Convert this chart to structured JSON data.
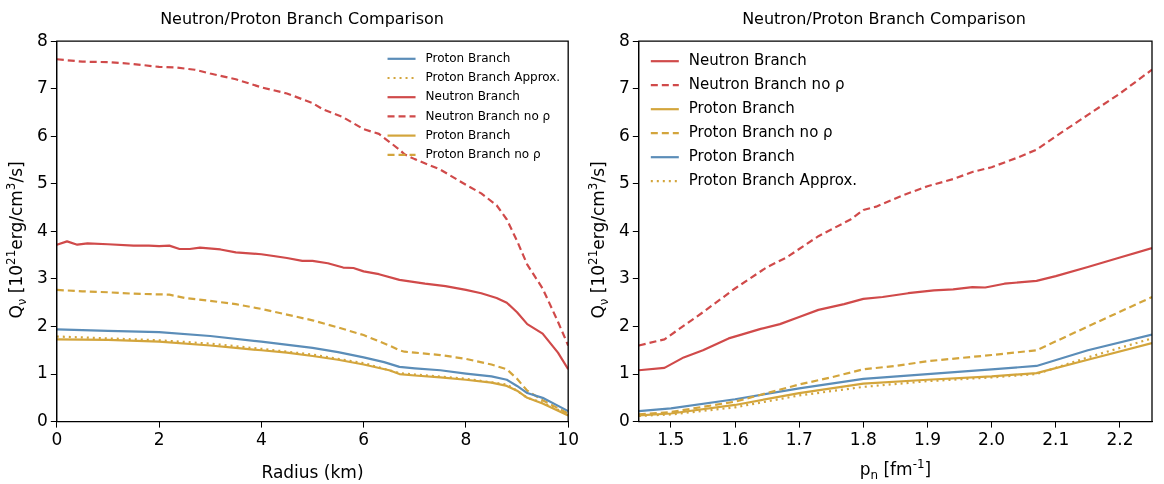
{
  "chart_data": [
    {
      "type": "line",
      "title": "Neutron/Proton Branch Comparison",
      "xlabel": "Radius (km)",
      "ylabel": "Q$_{ν}$ [10$^{21}$erg/cm$^{3}$/s]",
      "xlim": [
        0,
        10
      ],
      "xticks": [
        0,
        2,
        4,
        6,
        8,
        10
      ],
      "ylim": [
        0,
        8
      ],
      "yticks": [
        0,
        1,
        2,
        3,
        4,
        5,
        6,
        7,
        8
      ],
      "grid": false,
      "legend": "top right",
      "marker": "none",
      "series": [
        {
          "name": "Proton Branch",
          "color": "#5b8db8",
          "line_style": "solid",
          "x": [
            0,
            1,
            2,
            3,
            4,
            5,
            5.5,
            6,
            6.4,
            6.7,
            7,
            7.5,
            8,
            8.5,
            8.8,
            9,
            9.2,
            9.5,
            10
          ],
          "values": [
            1.94,
            1.91,
            1.88,
            1.8,
            1.68,
            1.55,
            1.46,
            1.35,
            1.25,
            1.15,
            1.12,
            1.08,
            1.01,
            0.95,
            0.88,
            0.75,
            0.6,
            0.5,
            0.22
          ]
        },
        {
          "name": "Proton Branch Approx.",
          "color": "#d3a53c",
          "line_style": "dotted",
          "x": [
            0,
            1,
            2,
            3,
            4,
            5,
            6,
            6.7,
            7,
            8,
            8.8,
            9,
            9.2,
            9.5,
            10
          ],
          "values": [
            1.79,
            1.75,
            1.71,
            1.64,
            1.53,
            1.41,
            1.23,
            1.02,
            0.99,
            0.9,
            0.78,
            0.65,
            0.5,
            0.4,
            0.15
          ]
        },
        {
          "name": "Neutron Branch",
          "color": "#d04a4a",
          "line_style": "solid",
          "x": [
            0,
            0.2,
            0.4,
            0.6,
            1,
            1.5,
            1.8,
            2,
            2.2,
            2.4,
            2.6,
            2.8,
            3.2,
            3.5,
            4,
            4.5,
            4.8,
            5,
            5.3,
            5.6,
            5.8,
            6,
            6.3,
            6.7,
            6.9,
            7.2,
            7.6,
            8,
            8.3,
            8.6,
            8.8,
            9,
            9.2,
            9.5,
            9.8,
            10
          ],
          "values": [
            3.72,
            3.79,
            3.72,
            3.75,
            3.73,
            3.7,
            3.7,
            3.69,
            3.7,
            3.63,
            3.63,
            3.66,
            3.62,
            3.56,
            3.52,
            3.44,
            3.38,
            3.38,
            3.33,
            3.24,
            3.23,
            3.16,
            3.1,
            2.98,
            2.95,
            2.9,
            2.85,
            2.77,
            2.7,
            2.6,
            2.5,
            2.3,
            2.05,
            1.85,
            1.45,
            1.1
          ]
        },
        {
          "name": "Neutron Branch no ρ",
          "color": "#d04a4a",
          "line_style": "dashed",
          "x": [
            0,
            0.5,
            1,
            1.5,
            2,
            2.3,
            2.7,
            3,
            3.5,
            4,
            4.5,
            5,
            5.2,
            5.6,
            6,
            6.3,
            6.7,
            6.8,
            7,
            7.5,
            8,
            8.3,
            8.6,
            8.8,
            9,
            9.2,
            9.5,
            9.8,
            10
          ],
          "values": [
            7.62,
            7.57,
            7.56,
            7.52,
            7.46,
            7.45,
            7.4,
            7.32,
            7.2,
            7.03,
            6.9,
            6.7,
            6.57,
            6.4,
            6.15,
            6.05,
            5.72,
            5.62,
            5.52,
            5.3,
            4.98,
            4.8,
            4.55,
            4.25,
            3.8,
            3.3,
            2.8,
            2.1,
            1.6
          ]
        },
        {
          "name": "Proton Branch",
          "color": "#d3a53c",
          "line_style": "solid",
          "x": [
            0,
            1,
            2,
            3,
            3.5,
            4,
            4.5,
            5,
            5.5,
            6,
            6.5,
            6.7,
            7,
            7.5,
            8,
            8.5,
            8.8,
            9,
            9.2,
            9.5,
            10
          ],
          "values": [
            1.73,
            1.72,
            1.68,
            1.6,
            1.55,
            1.5,
            1.45,
            1.38,
            1.3,
            1.2,
            1.08,
            1.0,
            0.97,
            0.93,
            0.88,
            0.82,
            0.75,
            0.65,
            0.5,
            0.38,
            0.13
          ]
        },
        {
          "name": "Proton Branch no ρ",
          "color": "#d3a53c",
          "line_style": "dashed",
          "x": [
            0,
            0.5,
            1,
            1.5,
            2.2,
            2.5,
            3,
            3.5,
            4,
            4.5,
            5,
            5.5,
            6,
            6.5,
            6.7,
            6.8,
            7,
            7.5,
            8,
            8.5,
            8.8,
            9,
            9.2,
            9.5,
            10
          ],
          "values": [
            2.77,
            2.74,
            2.72,
            2.69,
            2.67,
            2.6,
            2.54,
            2.47,
            2.37,
            2.25,
            2.13,
            1.98,
            1.82,
            1.6,
            1.5,
            1.47,
            1.45,
            1.4,
            1.32,
            1.2,
            1.1,
            0.9,
            0.65,
            0.45,
            0.17
          ]
        }
      ]
    },
    {
      "type": "line",
      "title": "Neutron/Proton Branch Comparison",
      "xlabel": "p$_{n}$ [fm$^{-1}$]",
      "ylabel": "Q$_{ν}$ [10$^{21}$erg/cm$^{3}$/s]",
      "xlim": [
        1.45,
        2.25
      ],
      "xticks": [
        1.5,
        1.6,
        1.7,
        1.8,
        1.9,
        {
          "value": 2,
          "label": "2.0"
        },
        2.1,
        2.2
      ],
      "ylim": [
        0,
        8
      ],
      "yticks": [
        0,
        1,
        2,
        3,
        4,
        5,
        6,
        7,
        8
      ],
      "grid": false,
      "legend": "top left",
      "marker": "none",
      "series": [
        {
          "name": "Neutron Branch",
          "color": "#d04a4a",
          "line_style": "solid",
          "x": [
            1.45,
            1.49,
            1.52,
            1.55,
            1.59,
            1.61,
            1.64,
            1.67,
            1.7,
            1.73,
            1.77,
            1.8,
            1.83,
            1.87,
            1.91,
            1.94,
            1.97,
            1.99,
            2.02,
            2.07,
            2.1,
            2.15,
            2.2,
            2.25
          ],
          "values": [
            1.08,
            1.13,
            1.35,
            1.5,
            1.75,
            1.83,
            1.95,
            2.05,
            2.2,
            2.35,
            2.47,
            2.58,
            2.62,
            2.7,
            2.76,
            2.78,
            2.83,
            2.82,
            2.9,
            2.96,
            3.06,
            3.25,
            3.45,
            3.65
          ]
        },
        {
          "name": "Neutron Branch no ρ",
          "color": "#d04a4a",
          "line_style": "dashed",
          "x": [
            1.45,
            1.49,
            1.55,
            1.6,
            1.65,
            1.68,
            1.73,
            1.78,
            1.8,
            1.82,
            1.86,
            1.9,
            1.94,
            1.97,
            2.0,
            2.04,
            2.07,
            2.1,
            2.15,
            2.2,
            2.25
          ],
          "values": [
            1.6,
            1.73,
            2.3,
            2.8,
            3.25,
            3.45,
            3.9,
            4.25,
            4.45,
            4.52,
            4.75,
            4.95,
            5.1,
            5.25,
            5.35,
            5.55,
            5.72,
            6.0,
            6.45,
            6.9,
            7.4
          ]
        },
        {
          "name": "Proton Branch",
          "color": "#d3a53c",
          "line_style": "solid",
          "x": [
            1.45,
            1.5,
            1.6,
            1.7,
            1.8,
            1.9,
            2.0,
            2.07,
            2.15,
            2.25
          ],
          "values": [
            0.13,
            0.17,
            0.35,
            0.6,
            0.8,
            0.88,
            0.95,
            1.02,
            1.3,
            1.65
          ]
        },
        {
          "name": "Proton Branch no ρ",
          "color": "#d3a53c",
          "line_style": "dashed",
          "x": [
            1.45,
            1.5,
            1.6,
            1.7,
            1.75,
            1.8,
            1.85,
            1.9,
            2.0,
            2.07,
            2.15,
            2.25
          ],
          "values": [
            0.15,
            0.2,
            0.42,
            0.78,
            0.93,
            1.1,
            1.17,
            1.27,
            1.4,
            1.5,
            2.0,
            2.62
          ]
        },
        {
          "name": "Proton Branch",
          "color": "#5b8db8",
          "line_style": "solid",
          "x": [
            1.45,
            1.5,
            1.6,
            1.7,
            1.8,
            1.9,
            2.0,
            2.07,
            2.15,
            2.25
          ],
          "values": [
            0.22,
            0.28,
            0.47,
            0.7,
            0.9,
            1.0,
            1.1,
            1.17,
            1.5,
            1.83
          ]
        },
        {
          "name": "Proton Branch Approx.",
          "color": "#d3a53c",
          "line_style": "dotted",
          "x": [
            1.45,
            1.5,
            1.6,
            1.7,
            1.8,
            1.9,
            2.0,
            2.07,
            2.15,
            2.25
          ],
          "values": [
            0.12,
            0.15,
            0.3,
            0.55,
            0.73,
            0.85,
            0.93,
            1.0,
            1.35,
            1.75
          ]
        }
      ]
    }
  ]
}
